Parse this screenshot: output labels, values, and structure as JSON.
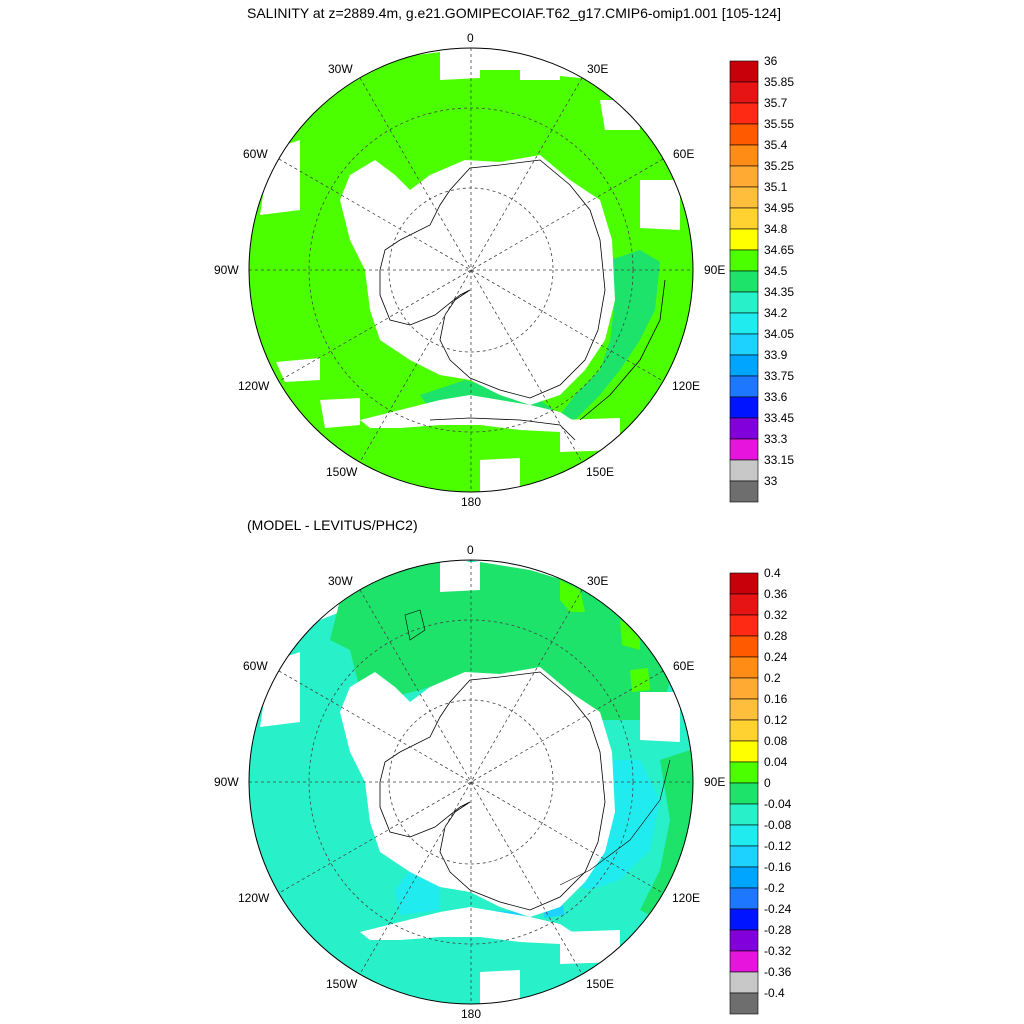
{
  "top_panel": {
    "title": "SALINITY at z=2889.4m, g.e21.GOMIPECOIAF.T62_g17.CMIP6-omip1.001 [105-124]",
    "longitude_labels": [
      "0",
      "30E",
      "60E",
      "90E",
      "120E",
      "150E",
      "180",
      "150W",
      "120W",
      "90W",
      "60W",
      "30W"
    ],
    "fill_color": "#4cff00",
    "secondary_fill_color": "#1ee36a",
    "colorbar": {
      "labels": [
        "36",
        "35.85",
        "35.7",
        "35.55",
        "35.4",
        "35.25",
        "35.1",
        "34.95",
        "34.8",
        "34.65",
        "34.5",
        "34.35",
        "34.2",
        "34.05",
        "33.9",
        "33.75",
        "33.6",
        "33.45",
        "33.3",
        "33.15",
        "33"
      ],
      "colors": [
        "#c8000a",
        "#e61414",
        "#ff2a14",
        "#ff5a00",
        "#ff8c14",
        "#ffaa32",
        "#ffbe3c",
        "#ffd232",
        "#ffff00",
        "#4cff00",
        "#1ee36a",
        "#28f0c8",
        "#20ecf0",
        "#1ed2ff",
        "#00a5ff",
        "#1e78ff",
        "#0014ff",
        "#8200dc",
        "#e614dc",
        "#c8c8c8",
        "#6e6e6e"
      ]
    }
  },
  "bottom_panel": {
    "title": "(MODEL - LEVITUS/PHC2)",
    "longitude_labels": [
      "0",
      "30E",
      "60E",
      "90E",
      "120E",
      "150E",
      "180",
      "150W",
      "120W",
      "90W",
      "60W",
      "30W"
    ],
    "fill_color": "#1ee36a",
    "secondary_fill_color": "#28f0c8",
    "tertiary_fill_color": "#20ecf0",
    "colorbar": {
      "labels": [
        "0.4",
        "0.36",
        "0.32",
        "0.28",
        "0.24",
        "0.2",
        "0.16",
        "0.12",
        "0.08",
        "0.04",
        "0",
        "-0.04",
        "-0.08",
        "-0.12",
        "-0.16",
        "-0.2",
        "-0.24",
        "-0.28",
        "-0.32",
        "-0.36",
        "-0.4"
      ],
      "colors": [
        "#c8000a",
        "#e61414",
        "#ff2a14",
        "#ff5a00",
        "#ff8c14",
        "#ffaa32",
        "#ffbe3c",
        "#ffd232",
        "#ffff00",
        "#4cff00",
        "#1ee36a",
        "#28f0c8",
        "#20ecf0",
        "#1ed2ff",
        "#00a5ff",
        "#1e78ff",
        "#0014ff",
        "#8200dc",
        "#e614dc",
        "#c8c8c8",
        "#6e6e6e"
      ]
    }
  }
}
